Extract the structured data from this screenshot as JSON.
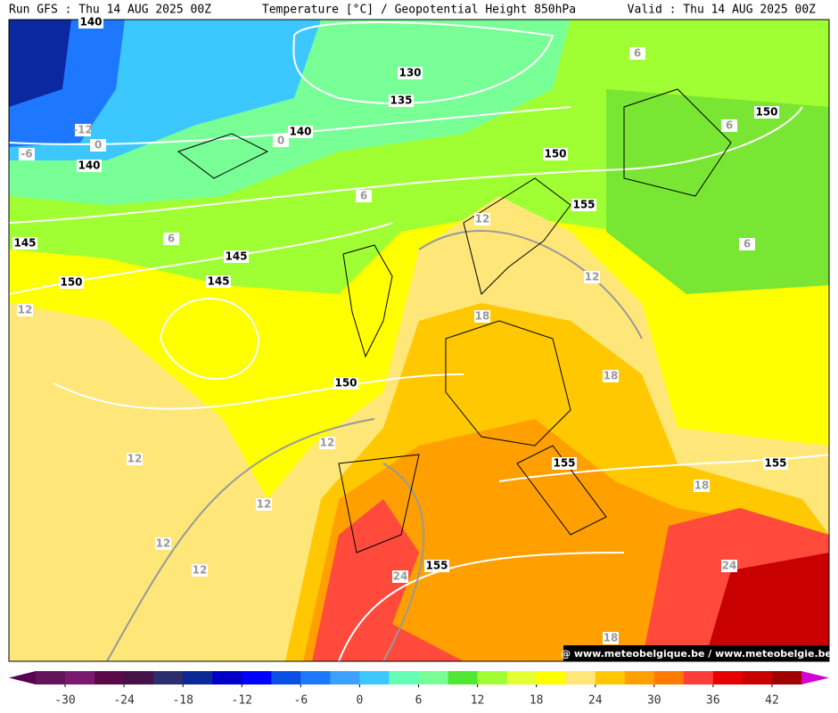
{
  "header": {
    "run": "Run GFS : Thu 14 AUG 2025 00Z",
    "title": "Temperature [°C] / Geopotential Height 850hPa",
    "valid": "Valid : Thu 14 AUG 2025 00Z"
  },
  "map": {
    "height_labels": [
      "140",
      "130",
      "135",
      "140",
      "150",
      "150",
      "140",
      "155",
      "145",
      "145",
      "150",
      "145",
      "150",
      "155",
      "155",
      "155"
    ],
    "temperature_labels": [
      "6",
      "-12",
      "0",
      "0",
      "-6",
      "6",
      "6",
      "6",
      "12",
      "6",
      "12",
      "12",
      "18",
      "18",
      "12",
      "12",
      "18",
      "12",
      "12",
      "12",
      "24",
      "24",
      "18"
    ],
    "watermark": "@ www.meteobelgique.be / www.meteobelgie.be"
  },
  "colorbar": {
    "range": [
      -33,
      45
    ],
    "ticks": [
      -30,
      -24,
      -18,
      -12,
      -6,
      0,
      6,
      12,
      18,
      24,
      30,
      36,
      42
    ],
    "colors": [
      "#64145a",
      "#7a1a6e",
      "#5a0a46",
      "#461048",
      "#2d2d6e",
      "#0a2896",
      "#0000c8",
      "#0000ff",
      "#0a50e6",
      "#1e78ff",
      "#3ca0ff",
      "#3cc8ff",
      "#64ffb4",
      "#78ff96",
      "#50e632",
      "#a0ff32",
      "#e6ff32",
      "#ffff00",
      "#ffe678",
      "#ffc800",
      "#ffa000",
      "#ff7800",
      "#ff3c3c",
      "#e60000",
      "#c80000",
      "#a00000"
    ],
    "under_color": "#5a0050",
    "over_color": "#d200d2"
  }
}
